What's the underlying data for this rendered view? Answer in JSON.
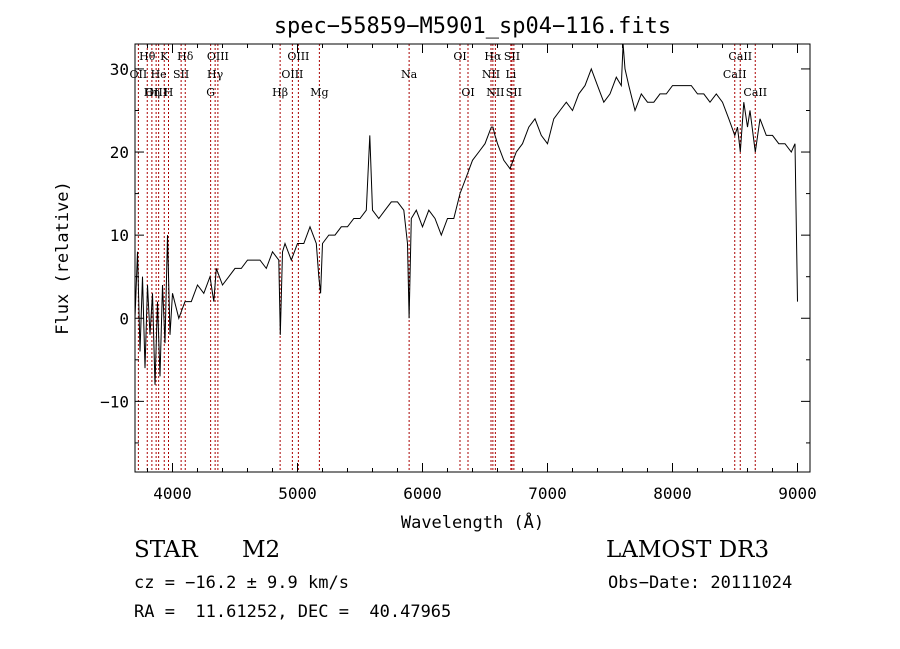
{
  "chart_data": {
    "type": "line",
    "title": "spec−55859−M5901_sp04−116.fits",
    "xlabel": "Wavelength (Å)",
    "ylabel": "Flux (relative)",
    "xlim": [
      3700,
      9100
    ],
    "ylim": [
      -18.5,
      33
    ],
    "xticks": [
      4000,
      5000,
      6000,
      7000,
      8000,
      9000
    ],
    "ytick_labels": [
      "−10",
      "0",
      "10",
      "20",
      "30"
    ],
    "ytick_values": [
      -10,
      0,
      10,
      20,
      30
    ],
    "grid": false,
    "series": [
      {
        "name": "flux",
        "color": "#000000",
        "x": [
          3700,
          3720,
          3740,
          3760,
          3780,
          3800,
          3820,
          3840,
          3860,
          3880,
          3900,
          3920,
          3940,
          3960,
          3980,
          4000,
          4050,
          4100,
          4150,
          4200,
          4250,
          4300,
          4330,
          4350,
          4400,
          4450,
          4500,
          4550,
          4600,
          4650,
          4700,
          4750,
          4800,
          4850,
          4862,
          4880,
          4900,
          4950,
          5000,
          5050,
          5100,
          5150,
          5170,
          5185,
          5200,
          5250,
          5300,
          5350,
          5400,
          5450,
          5500,
          5550,
          5578,
          5600,
          5650,
          5700,
          5750,
          5800,
          5850,
          5880,
          5893,
          5910,
          5950,
          6000,
          6050,
          6100,
          6150,
          6200,
          6250,
          6300,
          6350,
          6400,
          6450,
          6500,
          6550,
          6563,
          6580,
          6600,
          6650,
          6700,
          6750,
          6800,
          6850,
          6900,
          6950,
          7000,
          7050,
          7100,
          7150,
          7200,
          7250,
          7300,
          7350,
          7400,
          7450,
          7500,
          7550,
          7590,
          7605,
          7620,
          7650,
          7700,
          7750,
          7800,
          7850,
          7900,
          7950,
          8000,
          8050,
          8100,
          8150,
          8200,
          8250,
          8300,
          8350,
          8400,
          8450,
          8498,
          8520,
          8542,
          8570,
          8600,
          8620,
          8662,
          8700,
          8750,
          8800,
          8850,
          8900,
          8950,
          8980,
          9000
        ],
        "y": [
          0,
          8,
          -4,
          5,
          -6,
          4,
          -2,
          3,
          -8,
          2,
          -7,
          4,
          -3,
          10,
          -2,
          3,
          0,
          2,
          2,
          4,
          3,
          5,
          2,
          6,
          4,
          5,
          6,
          6,
          7,
          7,
          7,
          6,
          8,
          7,
          -2,
          8,
          9,
          7,
          9,
          9,
          11,
          9,
          5,
          3,
          9,
          10,
          10,
          11,
          11,
          12,
          12,
          13,
          22,
          13,
          12,
          13,
          14,
          14,
          13,
          9,
          0,
          12,
          13,
          11,
          13,
          12,
          10,
          12,
          12,
          15,
          17,
          19,
          20,
          21,
          23,
          23,
          22,
          21,
          19,
          18,
          20,
          21,
          23,
          24,
          22,
          21,
          24,
          25,
          26,
          25,
          27,
          28,
          30,
          28,
          26,
          27,
          29,
          28,
          33,
          30,
          28,
          25,
          27,
          26,
          26,
          27,
          27,
          28,
          28,
          28,
          28,
          27,
          27,
          26,
          27,
          26,
          24,
          22,
          23,
          20,
          26,
          23,
          25,
          20,
          24,
          22,
          22,
          21,
          21,
          20,
          21,
          2
        ]
      }
    ],
    "line_labels": [
      {
        "label": "Hθ",
        "x": 3798,
        "row": 1
      },
      {
        "label": "OII",
        "x": 3727,
        "row": 2
      },
      {
        "label": "OIII",
        "x": 3869,
        "row": 3
      },
      {
        "label": "K",
        "x": 3934,
        "row": 1
      },
      {
        "label": "He",
        "x": 3889,
        "row": 2
      },
      {
        "label": "Hη",
        "x": 3835,
        "row": 3
      },
      {
        "label": "SII",
        "x": 4069,
        "row": 2
      },
      {
        "label": "H",
        "x": 3968,
        "row": 3
      },
      {
        "label": "Hδ",
        "x": 4102,
        "row": 1
      },
      {
        "label": "OIII",
        "x": 4363,
        "row": 1
      },
      {
        "label": "Hγ",
        "x": 4341,
        "row": 2
      },
      {
        "label": "G",
        "x": 4305,
        "row": 3
      },
      {
        "label": "Hβ",
        "x": 4861,
        "row": 3
      },
      {
        "label": "OIII",
        "x": 5007,
        "row": 1
      },
      {
        "label": "OIII",
        "x": 4959,
        "row": 2
      },
      {
        "label": "Mg",
        "x": 5175,
        "row": 3
      },
      {
        "label": "Na",
        "x": 5893,
        "row": 2
      },
      {
        "label": "OI",
        "x": 6300,
        "row": 1
      },
      {
        "label": "OI",
        "x": 6364,
        "row": 3
      },
      {
        "label": "Hα",
        "x": 6563,
        "row": 1
      },
      {
        "label": "SII",
        "x": 6716,
        "row": 1
      },
      {
        "label": "NII",
        "x": 6548,
        "row": 2
      },
      {
        "label": "Li",
        "x": 6707,
        "row": 2
      },
      {
        "label": "NII",
        "x": 6583,
        "row": 3
      },
      {
        "label": "SII",
        "x": 6731,
        "row": 3
      },
      {
        "label": "CaII",
        "x": 8542,
        "row": 1
      },
      {
        "label": "CaII",
        "x": 8498,
        "row": 2
      },
      {
        "label": "CaII",
        "x": 8662,
        "row": 3
      }
    ],
    "line_positions": [
      3727,
      3798,
      3835,
      3869,
      3889,
      3934,
      3968,
      4069,
      4102,
      4305,
      4341,
      4363,
      4861,
      4959,
      5007,
      5175,
      5893,
      6300,
      6364,
      6548,
      6563,
      6583,
      6707,
      6716,
      6731,
      8498,
      8542,
      8662
    ],
    "line_color": "#aa0000"
  },
  "info": {
    "class": "STAR",
    "subclass": "M2",
    "survey": "LAMOST DR3",
    "cz": "cz = −16.2 ± 9.9 km/s",
    "obs_date": "Obs−Date: 20111024",
    "coords": "RA =  11.61252, DEC =  40.47965"
  }
}
